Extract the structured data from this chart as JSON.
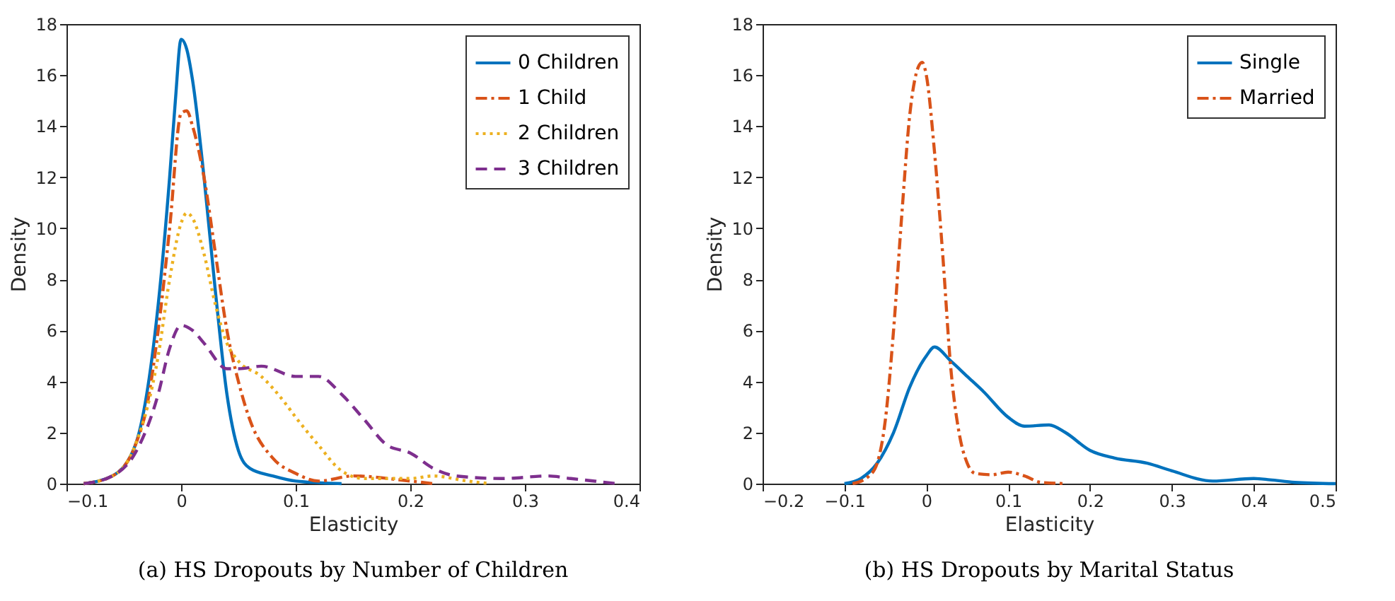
{
  "chart_data": [
    {
      "type": "line",
      "title": "(a) HS Dropouts by Number of Children",
      "xlabel": "Elasticity",
      "ylabel": "Density",
      "xlim": [
        -0.1,
        0.4
      ],
      "xticks": [
        -0.1,
        0,
        0.1,
        0.2,
        0.3,
        0.4
      ],
      "ylim": [
        0,
        18
      ],
      "yticks": [
        0,
        2,
        4,
        6,
        8,
        10,
        12,
        14,
        16,
        18
      ],
      "grid": false,
      "legend": "top right",
      "series": [
        {
          "name": "0 Children",
          "color": "#0072bd",
          "line_style": "solid",
          "x": [
            -0.085,
            -0.06,
            -0.04,
            -0.03,
            -0.02,
            -0.01,
            -0.005,
            0,
            0.005,
            0.01,
            0.02,
            0.03,
            0.04,
            0.05,
            0.06,
            0.08,
            0.1,
            0.14
          ],
          "values": [
            0,
            0.3,
            1.5,
            3.5,
            7,
            12,
            15,
            17.4,
            17,
            15.8,
            12,
            7.5,
            3.5,
            1.3,
            0.6,
            0.3,
            0.1,
            0
          ]
        },
        {
          "name": "1 Child",
          "color": "#d95319",
          "line_style": "dashdot",
          "x": [
            -0.085,
            -0.06,
            -0.04,
            -0.03,
            -0.02,
            -0.01,
            0,
            0.005,
            0.01,
            0.02,
            0.03,
            0.04,
            0.05,
            0.06,
            0.08,
            0.1,
            0.12,
            0.15,
            0.2,
            0.22
          ],
          "values": [
            0,
            0.3,
            1.5,
            3,
            6,
            10,
            14.5,
            14.6,
            14,
            12,
            9,
            6,
            4,
            2.5,
            1,
            0.4,
            0.1,
            0.3,
            0.1,
            0
          ]
        },
        {
          "name": "2 Children",
          "color": "#edb120",
          "line_style": "dotted",
          "x": [
            -0.085,
            -0.06,
            -0.04,
            -0.02,
            -0.01,
            0,
            0.005,
            0.01,
            0.02,
            0.03,
            0.04,
            0.05,
            0.07,
            0.09,
            0.1,
            0.12,
            0.14,
            0.16,
            0.2,
            0.22,
            0.25,
            0.27
          ],
          "values": [
            0,
            0.3,
            1.5,
            5,
            8,
            10.2,
            10.6,
            10.4,
            9,
            7,
            5.5,
            4.8,
            4.2,
            3.2,
            2.6,
            1.5,
            0.5,
            0.2,
            0.2,
            0.3,
            0.1,
            0
          ]
        },
        {
          "name": "3 Children",
          "color": "#7e2f8e",
          "line_style": "dashed",
          "x": [
            -0.085,
            -0.06,
            -0.04,
            -0.02,
            -0.01,
            0,
            0.01,
            0.02,
            0.04,
            0.05,
            0.07,
            0.1,
            0.12,
            0.14,
            0.16,
            0.18,
            0.2,
            0.22,
            0.24,
            0.28,
            0.32,
            0.34,
            0.38
          ],
          "values": [
            0,
            0.3,
            1.2,
            3.5,
            5.3,
            6.2,
            6,
            5.5,
            4.5,
            4.5,
            4.6,
            4.2,
            4.2,
            3.5,
            2.5,
            1.5,
            1.2,
            0.6,
            0.3,
            0.2,
            0.3,
            0.2,
            0
          ]
        }
      ]
    },
    {
      "type": "line",
      "title": "(b) HS Dropouts by Marital Status",
      "xlabel": "Elasticity",
      "ylabel": "Density",
      "xlim": [
        -0.2,
        0.5
      ],
      "xticks": [
        -0.2,
        -0.1,
        0,
        0.1,
        0.2,
        0.3,
        0.4,
        0.5
      ],
      "ylim": [
        0,
        18
      ],
      "yticks": [
        0,
        2,
        4,
        6,
        8,
        10,
        12,
        14,
        16,
        18
      ],
      "grid": false,
      "legend": "top right",
      "series": [
        {
          "name": "Single",
          "color": "#0072bd",
          "line_style": "solid",
          "x": [
            -0.1,
            -0.08,
            -0.06,
            -0.04,
            -0.02,
            0,
            0.01,
            0.03,
            0.05,
            0.07,
            0.1,
            0.12,
            0.15,
            0.17,
            0.2,
            0.23,
            0.27,
            0.3,
            0.35,
            0.4,
            0.42,
            0.45,
            0.5
          ],
          "values": [
            0,
            0.2,
            0.8,
            2,
            3.8,
            5,
            5.35,
            4.8,
            4.2,
            3.6,
            2.6,
            2.25,
            2.3,
            2,
            1.3,
            1,
            0.8,
            0.5,
            0.1,
            0.2,
            0.15,
            0.05,
            0
          ]
        },
        {
          "name": "Married",
          "color": "#d95319",
          "line_style": "dashdot",
          "x": [
            -0.09,
            -0.07,
            -0.06,
            -0.05,
            -0.04,
            -0.03,
            -0.02,
            -0.01,
            -0.005,
            0,
            0.01,
            0.02,
            0.03,
            0.04,
            0.05,
            0.06,
            0.08,
            0.1,
            0.12,
            0.14,
            0.17
          ],
          "values": [
            0,
            0.3,
            0.8,
            2.5,
            6,
            10.5,
            14.5,
            16.3,
            16.5,
            16,
            13,
            9,
            4.5,
            2,
            0.8,
            0.4,
            0.35,
            0.45,
            0.3,
            0.05,
            0
          ]
        }
      ]
    }
  ]
}
